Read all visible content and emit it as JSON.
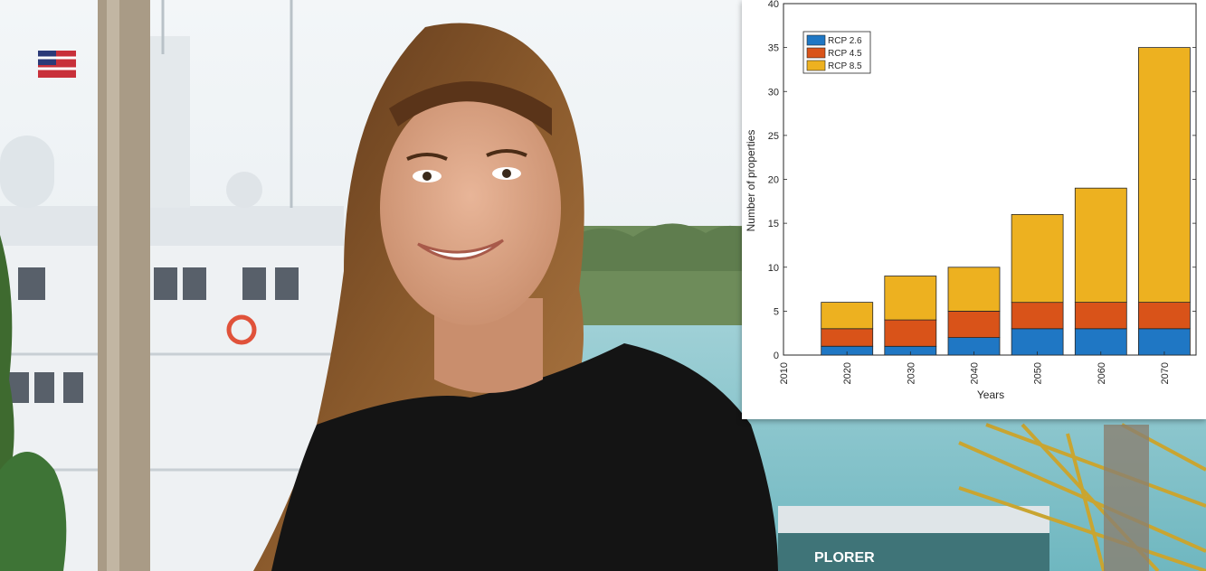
{
  "colors": {
    "rcp26": "#1f77c4",
    "rcp45": "#d95319",
    "rcp85": "#edb120"
  },
  "photo": {
    "description_icon": "portrait-photo-icon",
    "boat_name_fragment": "PLORER"
  },
  "chart_data": {
    "type": "bar",
    "stacked": true,
    "title": "",
    "xlabel": "Years",
    "ylabel": "Number of properties",
    "categories": [
      "2020",
      "2030",
      "2040",
      "2050",
      "2060",
      "2070"
    ],
    "x_tick_labels": [
      "2010",
      "2020",
      "2030",
      "2040",
      "2050",
      "2060",
      "2070"
    ],
    "y_ticks": [
      0,
      5,
      10,
      15,
      20,
      25,
      30,
      35,
      40
    ],
    "ylim": [
      0,
      40
    ],
    "legend_position": "top-left",
    "grid": false,
    "series": [
      {
        "name": "RCP 2.6",
        "color": "#1f77c4",
        "values": [
          1,
          1,
          2,
          3,
          3,
          3
        ]
      },
      {
        "name": "RCP 4.5",
        "color": "#d95319",
        "values": [
          2,
          3,
          3,
          3,
          3,
          3
        ]
      },
      {
        "name": "RCP 8.5",
        "color": "#edb120",
        "values": [
          3,
          5,
          5,
          10,
          13,
          29
        ]
      }
    ]
  }
}
